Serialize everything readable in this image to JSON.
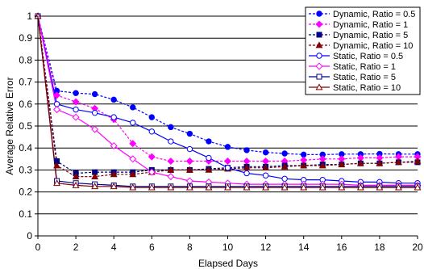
{
  "chart_data": {
    "type": "line",
    "xlabel": "Elapsed Days",
    "ylabel": "Average Relative Error",
    "xlim": [
      0,
      20
    ],
    "ylim": [
      0,
      1
    ],
    "xticks": [
      0,
      2,
      4,
      6,
      8,
      10,
      12,
      14,
      16,
      18,
      20
    ],
    "yticks": [
      0,
      0.1,
      0.2,
      0.3,
      0.4,
      0.5,
      0.6,
      0.7,
      0.8,
      0.9,
      1
    ],
    "grid": "horizontal",
    "legend_position": "top-right",
    "x": [
      0,
      1,
      2,
      3,
      4,
      5,
      6,
      7,
      8,
      9,
      10,
      11,
      12,
      13,
      14,
      15,
      16,
      17,
      18,
      19,
      20
    ],
    "series": [
      {
        "name": "Dynamic, Ratio = 0.5",
        "color": "#0000ff",
        "line": "dashed",
        "marker": "circle-filled",
        "values": [
          1,
          0.66,
          0.65,
          0.645,
          0.62,
          0.585,
          0.54,
          0.495,
          0.465,
          0.43,
          0.405,
          0.39,
          0.38,
          0.375,
          0.37,
          0.37,
          0.372,
          0.372,
          0.373,
          0.372,
          0.372
        ]
      },
      {
        "name": "Dynamic, Ratio = 1",
        "color": "#ff00ff",
        "line": "dashed",
        "marker": "diamond-filled",
        "values": [
          1,
          0.64,
          0.61,
          0.58,
          0.53,
          0.42,
          0.36,
          0.34,
          0.34,
          0.34,
          0.34,
          0.34,
          0.34,
          0.34,
          0.345,
          0.35,
          0.35,
          0.355,
          0.355,
          0.36,
          0.36
        ]
      },
      {
        "name": "Dynamic, Ratio = 5",
        "color": "#000080",
        "line": "dashed",
        "marker": "square-filled",
        "values": [
          1,
          0.34,
          0.285,
          0.29,
          0.29,
          0.29,
          0.3,
          0.3,
          0.3,
          0.305,
          0.31,
          0.315,
          0.315,
          0.32,
          0.32,
          0.325,
          0.325,
          0.33,
          0.33,
          0.335,
          0.335
        ]
      },
      {
        "name": "Dynamic, Ratio = 10",
        "color": "#800000",
        "line": "dashed",
        "marker": "triangle-filled",
        "values": [
          1,
          0.32,
          0.27,
          0.27,
          0.28,
          0.28,
          0.29,
          0.3,
          0.3,
          0.3,
          0.305,
          0.31,
          0.31,
          0.315,
          0.32,
          0.32,
          0.325,
          0.33,
          0.33,
          0.335,
          0.34
        ]
      },
      {
        "name": "Static, Ratio = 0.5",
        "color": "#0000ff",
        "line": "solid",
        "marker": "circle-open",
        "values": [
          1,
          0.6,
          0.575,
          0.56,
          0.54,
          0.515,
          0.475,
          0.43,
          0.395,
          0.355,
          0.31,
          0.285,
          0.275,
          0.26,
          0.255,
          0.255,
          0.25,
          0.245,
          0.245,
          0.24,
          0.24
        ]
      },
      {
        "name": "Static, Ratio = 1",
        "color": "#ff00ff",
        "line": "solid",
        "marker": "diamond-open",
        "values": [
          1,
          0.575,
          0.54,
          0.485,
          0.41,
          0.35,
          0.29,
          0.27,
          0.25,
          0.245,
          0.24,
          0.235,
          0.235,
          0.235,
          0.235,
          0.235,
          0.235,
          0.23,
          0.23,
          0.23,
          0.23
        ]
      },
      {
        "name": "Static, Ratio = 5",
        "color": "#000080",
        "line": "solid",
        "marker": "square-open",
        "values": [
          1,
          0.25,
          0.24,
          0.235,
          0.23,
          0.225,
          0.225,
          0.225,
          0.225,
          0.225,
          0.225,
          0.225,
          0.225,
          0.225,
          0.225,
          0.225,
          0.225,
          0.225,
          0.225,
          0.225,
          0.225
        ]
      },
      {
        "name": "Static, Ratio = 10",
        "color": "#800000",
        "line": "solid",
        "marker": "triangle-open",
        "values": [
          1,
          0.24,
          0.23,
          0.225,
          0.225,
          0.22,
          0.22,
          0.22,
          0.22,
          0.22,
          0.22,
          0.22,
          0.22,
          0.22,
          0.22,
          0.22,
          0.22,
          0.22,
          0.22,
          0.22,
          0.22
        ]
      }
    ]
  }
}
